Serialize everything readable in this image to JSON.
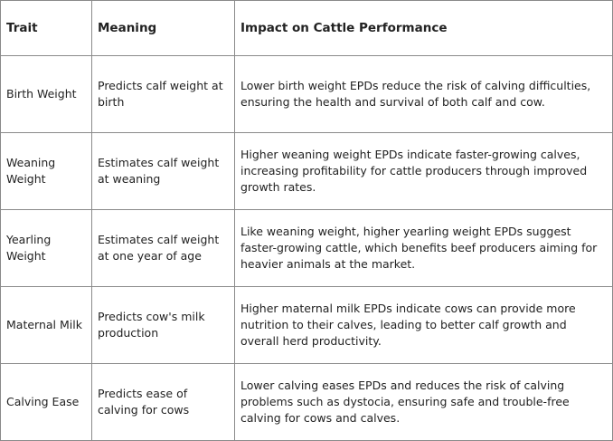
{
  "table": {
    "headers": [
      "Trait",
      "Meaning",
      "Impact on Cattle Performance"
    ],
    "rows": [
      [
        "Birth Weight",
        "Predicts calf weight at birth",
        "Lower birth weight EPDs reduce the risk of calving difficulties, ensuring the health and survival of both calf and cow."
      ],
      [
        "Weaning Weight",
        "Estimates calf weight at weaning",
        "Higher weaning weight EPDs indicate faster-growing calves, increasing profitability for cattle producers through improved growth rates."
      ],
      [
        "Yearling Weight",
        "Estimates calf weight at one year of age",
        "Like weaning weight, higher yearling weight EPDs suggest faster-growing cattle, which benefits beef producers aiming for heavier animals at the market."
      ],
      [
        "Maternal Milk",
        "Predicts cow's milk production",
        "Higher maternal milk EPDs indicate cows can provide more nutrition to their calves, leading to better calf growth and overall herd productivity."
      ],
      [
        "Calving Ease",
        "Predicts ease of calving for cows",
        "Lower calving eases EPDs and reduces the risk of calving problems such as dystocia, ensuring safe and trouble-free calving for cows and calves."
      ]
    ]
  }
}
